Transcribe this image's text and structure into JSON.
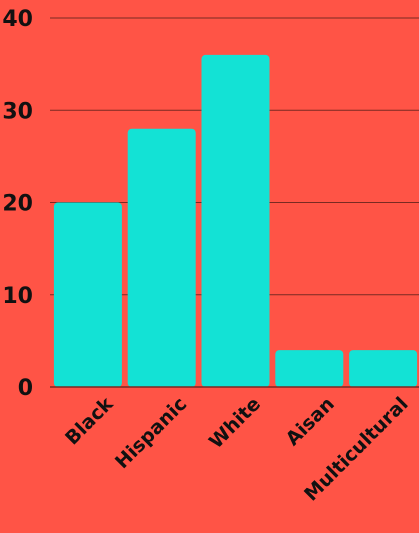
{
  "colors": {
    "background": "#ff5446",
    "bar": "#13e2d5",
    "grid": "#7a2a22",
    "text": "#111111"
  },
  "chart_data": {
    "type": "bar",
    "title": "",
    "xlabel": "",
    "ylabel": "",
    "categories": [
      "Black",
      "Hispanic",
      "White",
      "Aisan",
      "Multicultural"
    ],
    "values": [
      20,
      28,
      36,
      4,
      4
    ],
    "ylim": [
      0,
      40
    ],
    "yticks": [
      0,
      10,
      20,
      30,
      40
    ],
    "grid": true,
    "legend": "none"
  }
}
